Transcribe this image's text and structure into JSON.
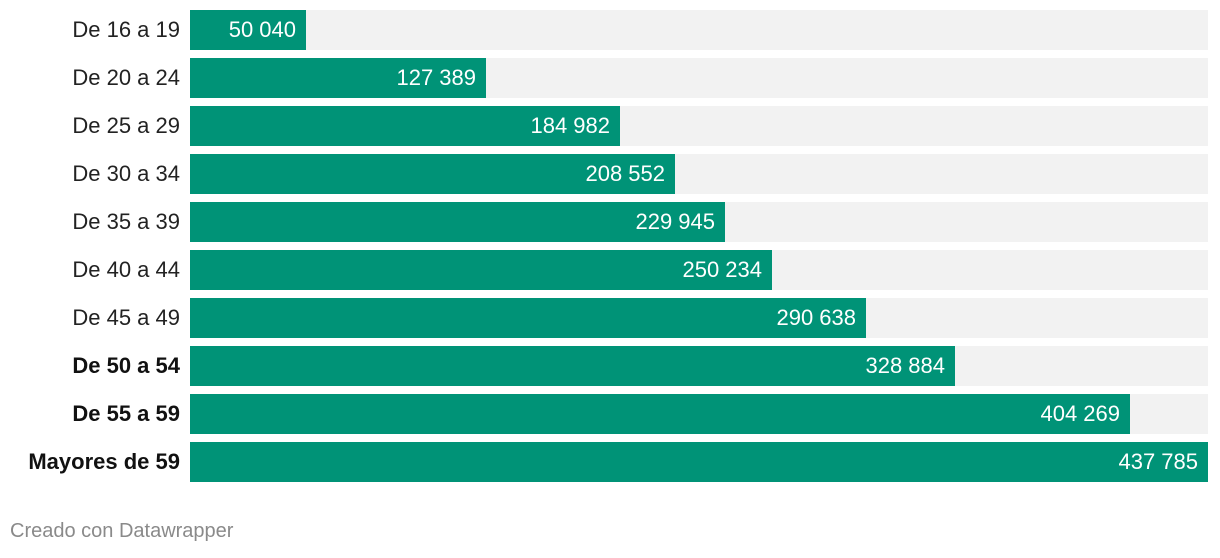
{
  "chart_data": {
    "type": "bar",
    "orientation": "horizontal",
    "categories": [
      "De 16 a 19",
      "De 20 a 24",
      "De 25 a 29",
      "De 30 a 34",
      "De 35 a 39",
      "De 40 a 44",
      "De 45 a 49",
      "De 50 a 54",
      "De 55 a 59",
      "Mayores de 59"
    ],
    "bold_categories": [
      "De 50 a 54",
      "De 55 a 59",
      "Mayores de 59"
    ],
    "values": [
      50040,
      127389,
      184982,
      208552,
      229945,
      250234,
      290638,
      328884,
      404269,
      437785
    ],
    "value_labels": [
      "50 040",
      "127 389",
      "184 982",
      "208 552",
      "229 945",
      "250 234",
      "290 638",
      "328 884",
      "404 269",
      "437 785"
    ],
    "xlim": [
      0,
      437785
    ],
    "grid": false,
    "legend": "none"
  },
  "colors": {
    "bar": "#009377",
    "track": "#f2f2f2"
  },
  "footer": {
    "credit": "Creado con Datawrapper"
  }
}
